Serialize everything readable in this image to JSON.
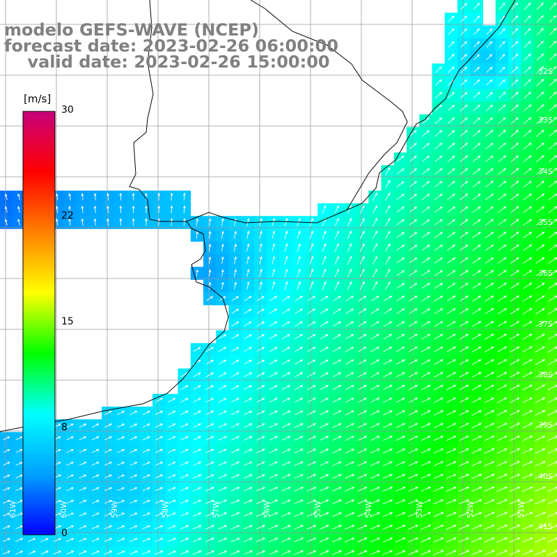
{
  "header": {
    "line1": "modelo GEFS-WAVE (NCEP)",
    "line2": "forecast date: 2023-02-26 06:00:00",
    "line3": "valid date: 2023-02-26 15:00:00"
  },
  "colorbar": {
    "units": "[m/s]",
    "ticks": [
      "30",
      "22",
      "15",
      "8",
      "0"
    ],
    "tick_values": [
      30,
      22,
      15,
      8,
      0
    ],
    "range": [
      0,
      30
    ],
    "colors": [
      "#0000ff",
      "#00a0ff",
      "#00ffff",
      "#00ff00",
      "#ffff00",
      "#ff8000",
      "#ff0000",
      "#c8007a"
    ]
  },
  "map": {
    "lat_labels": [
      "32S",
      "33S",
      "34S",
      "35S",
      "36S",
      "37S",
      "38S",
      "39S",
      "40S",
      "41S"
    ],
    "lon_labels": [
      "61W",
      "60W",
      "59W",
      "58W",
      "57W",
      "56W",
      "55W",
      "54W",
      "53W",
      "52W",
      "51W"
    ],
    "land_color": "#ffffff",
    "coast_color": "#000000",
    "grid_color": "#999999",
    "arrow_color": "#ffffff"
  }
}
